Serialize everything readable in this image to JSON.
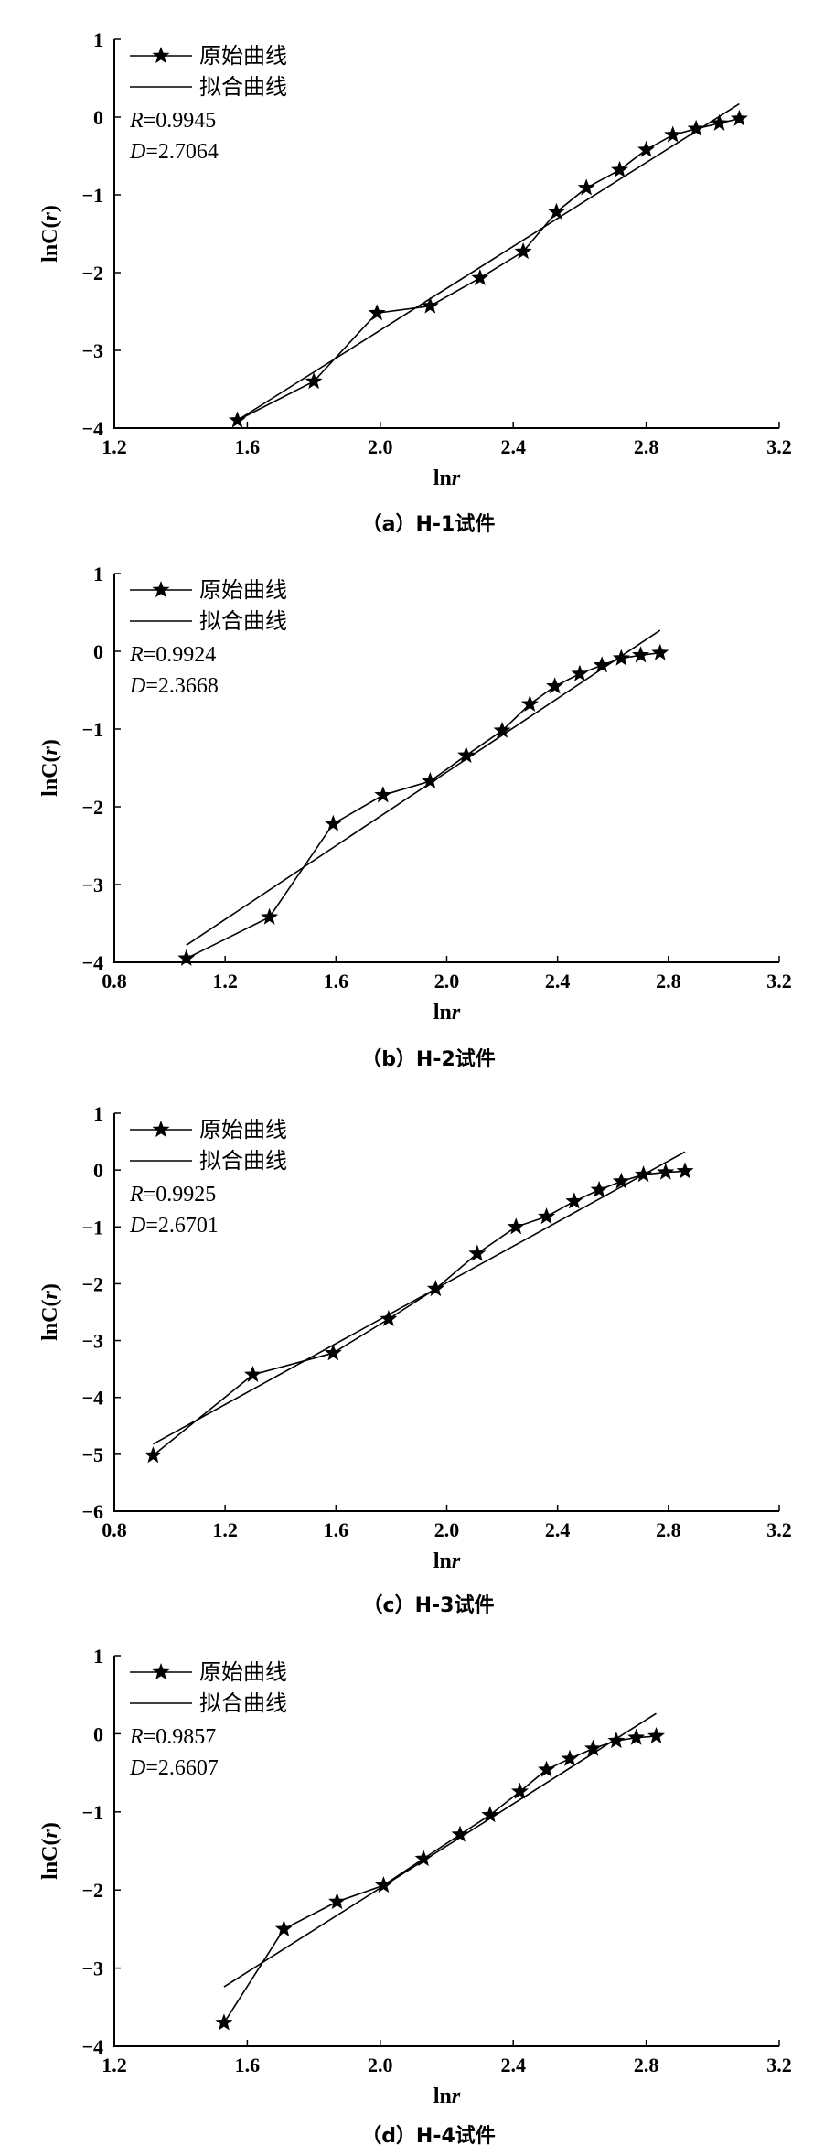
{
  "figure": {
    "axis_xlabel_main": "ln",
    "axis_xlabel_var": "r",
    "axis_ylabel_main": "lnC",
    "axis_ylabel_paren_open": "(",
    "axis_ylabel_var": "r",
    "axis_ylabel_paren_close": ")"
  },
  "chart_data": [
    {
      "type": "line",
      "title": "（a）H-1试件",
      "xlabel": "lnr",
      "ylabel": "lnC(r)",
      "xlim": [
        1.2,
        3.2
      ],
      "ylim": [
        -4,
        1
      ],
      "xticks": [
        1.2,
        1.6,
        2.0,
        2.4,
        2.8,
        3.2
      ],
      "xtick_labels": [
        "1.2",
        "1.6",
        "2.0",
        "2.4",
        "2.8",
        "3.2"
      ],
      "yticks": [
        -4,
        -3,
        -2,
        -1,
        0,
        1
      ],
      "ytick_labels": [
        "−4",
        "−3",
        "−2",
        "−1",
        "0",
        "1"
      ],
      "legend": [
        "原始曲线",
        "拟合曲线"
      ],
      "stats": {
        "R_label": "R",
        "R_value": "=0.9945",
        "D_label": "D",
        "D_value": "=2.7064"
      },
      "series": [
        {
          "name": "原始曲线",
          "x": [
            1.57,
            1.8,
            1.99,
            2.15,
            2.3,
            2.43,
            2.53,
            2.62,
            2.72,
            2.8,
            2.88,
            2.95,
            3.02,
            3.08
          ],
          "y": [
            -3.9,
            -3.4,
            -2.52,
            -2.43,
            -2.07,
            -1.73,
            -1.22,
            -0.91,
            -0.68,
            -0.42,
            -0.23,
            -0.15,
            -0.08,
            -0.02
          ]
        },
        {
          "name": "拟合曲线",
          "x": [
            1.57,
            3.08
          ],
          "y": [
            -3.9,
            0.17
          ]
        }
      ]
    },
    {
      "type": "line",
      "title": "（b）H-2试件",
      "xlabel": "lnr",
      "ylabel": "lnC(r)",
      "xlim": [
        0.8,
        3.2
      ],
      "ylim": [
        -4,
        1
      ],
      "xticks": [
        0.8,
        1.2,
        1.6,
        2.0,
        2.4,
        2.8,
        3.2
      ],
      "xtick_labels": [
        "0.8",
        "1.2",
        "1.6",
        "2.0",
        "2.4",
        "2.8",
        "3.2"
      ],
      "yticks": [
        -4,
        -3,
        -2,
        -1,
        0,
        1
      ],
      "ytick_labels": [
        "−4",
        "−3",
        "−2",
        "−1",
        "0",
        "1"
      ],
      "legend": [
        "原始曲线",
        "拟合曲线"
      ],
      "stats": {
        "R_label": "R",
        "R_value": "=0.9924",
        "D_label": "D",
        "D_value": "=2.3668"
      },
      "series": [
        {
          "name": "原始曲线",
          "x": [
            1.06,
            1.36,
            1.59,
            1.77,
            1.94,
            2.07,
            2.2,
            2.3,
            2.39,
            2.48,
            2.56,
            2.63,
            2.7,
            2.77
          ],
          "y": [
            -3.95,
            -3.42,
            -2.22,
            -1.85,
            -1.67,
            -1.34,
            -1.02,
            -0.68,
            -0.45,
            -0.29,
            -0.18,
            -0.09,
            -0.05,
            -0.02
          ]
        },
        {
          "name": "拟合曲线",
          "x": [
            1.06,
            2.77
          ],
          "y": [
            -3.78,
            0.27
          ]
        }
      ]
    },
    {
      "type": "line",
      "title": "（c）H-3试件",
      "xlabel": "lnr",
      "ylabel": "lnC(r)",
      "xlim": [
        0.8,
        3.2
      ],
      "ylim": [
        -6,
        1
      ],
      "xticks": [
        0.8,
        1.2,
        1.6,
        2.0,
        2.4,
        2.8,
        3.2
      ],
      "xtick_labels": [
        "0.8",
        "1.2",
        "1.6",
        "2.0",
        "2.4",
        "2.8",
        "3.2"
      ],
      "yticks": [
        -6,
        -5,
        -4,
        -3,
        -2,
        -1,
        0,
        1
      ],
      "ytick_labels": [
        "−6",
        "−5",
        "−4",
        "−3",
        "−2",
        "−1",
        "0",
        "1"
      ],
      "legend": [
        "原始曲线",
        "拟合曲线"
      ],
      "stats": {
        "R_label": "R",
        "R_value": "=0.9925",
        "D_label": "D",
        "D_value": "=2.6701"
      },
      "series": [
        {
          "name": "原始曲线",
          "x": [
            0.94,
            1.3,
            1.59,
            1.79,
            1.96,
            2.11,
            2.25,
            2.36,
            2.46,
            2.55,
            2.63,
            2.71,
            2.79,
            2.86
          ],
          "y": [
            -5.02,
            -3.6,
            -3.22,
            -2.62,
            -2.09,
            -1.47,
            -1.0,
            -0.82,
            -0.55,
            -0.35,
            -0.2,
            -0.08,
            -0.04,
            -0.02
          ]
        },
        {
          "name": "拟合曲线",
          "x": [
            0.94,
            2.86
          ],
          "y": [
            -4.82,
            0.32
          ]
        }
      ]
    },
    {
      "type": "line",
      "title": "（d）H-4试件",
      "xlabel": "lnr",
      "ylabel": "lnC(r)",
      "xlim": [
        1.2,
        3.2
      ],
      "ylim": [
        -4,
        1
      ],
      "xticks": [
        1.2,
        1.6,
        2.0,
        2.4,
        2.8,
        3.2
      ],
      "xtick_labels": [
        "1.2",
        "1.6",
        "2.0",
        "2.4",
        "2.8",
        "3.2"
      ],
      "yticks": [
        -4,
        -3,
        -2,
        -1,
        0,
        1
      ],
      "ytick_labels": [
        "−4",
        "−3",
        "−2",
        "−1",
        "0",
        "1"
      ],
      "legend": [
        "原始曲线",
        "拟合曲线"
      ],
      "stats": {
        "R_label": "R",
        "R_value": "=0.9857",
        "D_label": "D",
        "D_value": "=2.6607"
      },
      "series": [
        {
          "name": "原始曲线",
          "x": [
            1.53,
            1.71,
            1.87,
            2.01,
            2.13,
            2.24,
            2.33,
            2.42,
            2.5,
            2.57,
            2.64,
            2.71,
            2.77,
            2.83
          ],
          "y": [
            -3.7,
            -2.5,
            -2.15,
            -1.94,
            -1.6,
            -1.29,
            -1.04,
            -0.74,
            -0.46,
            -0.32,
            -0.19,
            -0.09,
            -0.05,
            -0.03
          ]
        },
        {
          "name": "拟合曲线",
          "x": [
            1.53,
            2.83
          ],
          "y": [
            -3.24,
            0.26
          ]
        }
      ]
    }
  ]
}
